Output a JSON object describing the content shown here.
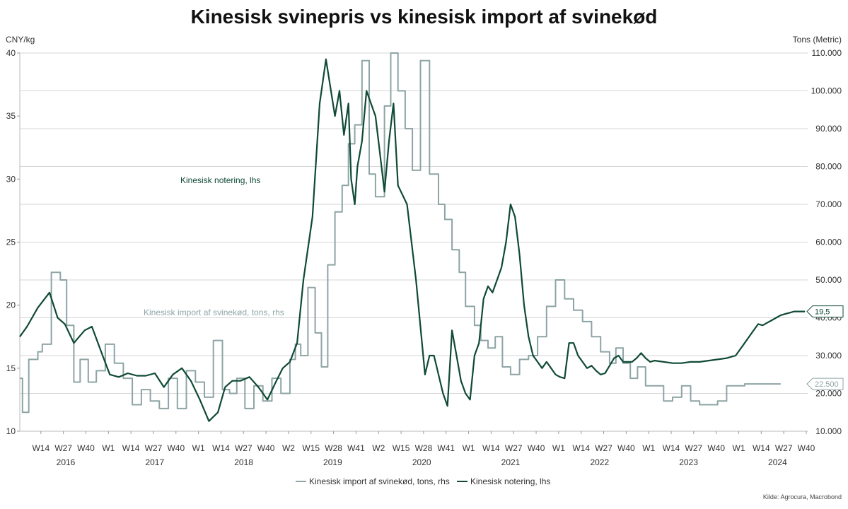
{
  "chart_data": {
    "type": "line",
    "title": "Kinesisk svinepris vs kinesisk import af svinekød",
    "y_left": {
      "label": "CNY/kg",
      "ticks": [
        "10",
        "15",
        "20",
        "25",
        "30",
        "35",
        "40"
      ],
      "range": [
        10,
        40
      ]
    },
    "y_right": {
      "label": "Tons (Metric)",
      "ticks": [
        "10.000",
        "20.000",
        "30.000",
        "40.000",
        "50.000",
        "60.000",
        "70.000",
        "80.000",
        "90.000",
        "100.000",
        "110.000"
      ],
      "range": [
        10000,
        110000
      ]
    },
    "x_ticks": [
      "W14",
      "W27",
      "W40",
      "W1",
      "W14",
      "W27",
      "W40",
      "W1",
      "W14",
      "W27",
      "W40",
      "W2",
      "W15",
      "W28",
      "W41",
      "W2",
      "W15",
      "W28",
      "W41",
      "W1",
      "W14",
      "W27",
      "W40",
      "W1",
      "W14",
      "W27",
      "W40",
      "W1",
      "W14",
      "W27",
      "W40",
      "W1",
      "W14",
      "W27",
      "W40"
    ],
    "x_years": [
      "2016",
      "2017",
      "2018",
      "2019",
      "2020",
      "2021",
      "2022",
      "2023",
      "2024"
    ],
    "grid": true,
    "legend_position": "bottom",
    "legend": [
      "Kinesisk import af svinekød, tons, rhs",
      "Kinesisk notering, lhs"
    ],
    "annotations": {
      "price_series": "Kinesisk notering, lhs",
      "import_series": "Kinesisk import af svinekød, tons, rhs"
    },
    "last_value_labels": {
      "price": "19,5",
      "import": "22.500"
    },
    "colors": {
      "price": "#0f4a35",
      "import": "#8ea4a5",
      "grid": "#d6d6d6"
    },
    "series": [
      {
        "name": "Kinesisk import af svinekød, tons, rhs",
        "axis": "right",
        "step": true,
        "x": [
          2016.0,
          2016.03,
          2016.1,
          2016.2,
          2016.25,
          2016.35,
          2016.45,
          2016.52,
          2016.6,
          2016.67,
          2016.76,
          2016.85,
          2016.95,
          2017.05,
          2017.15,
          2017.25,
          2017.35,
          2017.45,
          2017.55,
          2017.65,
          2017.75,
          2017.85,
          2017.95,
          2018.05,
          2018.15,
          2018.25,
          2018.33,
          2018.41,
          2018.5,
          2018.6,
          2018.7,
          2018.8,
          2018.9,
          2019.0,
          2019.06,
          2019.12,
          2019.2,
          2019.28,
          2019.35,
          2019.42,
          2019.5,
          2019.58,
          2019.65,
          2019.72,
          2019.8,
          2019.88,
          2019.95,
          2020.05,
          2020.12,
          2020.2,
          2020.28,
          2020.36,
          2020.45,
          2020.55,
          2020.65,
          2020.72,
          2020.8,
          2020.88,
          2020.95,
          2021.05,
          2021.12,
          2021.2,
          2021.28,
          2021.36,
          2021.45,
          2021.55,
          2021.65,
          2021.75,
          2021.85,
          2021.95,
          2022.05,
          2022.15,
          2022.25,
          2022.35,
          2022.45,
          2022.55,
          2022.62,
          2022.7,
          2022.78,
          2022.86,
          2022.95,
          2023.05,
          2023.15,
          2023.25,
          2023.35,
          2023.45,
          2023.55,
          2023.65,
          2023.75,
          2023.85,
          2023.95,
          2024.05,
          2024.15,
          2024.25,
          2024.35,
          2024.45
        ],
        "y": [
          24000,
          15000,
          29000,
          31000,
          33000,
          52000,
          50000,
          38000,
          23000,
          29000,
          23000,
          26000,
          33000,
          28000,
          24000,
          17000,
          21000,
          18000,
          16000,
          24000,
          16000,
          26000,
          23000,
          19000,
          34000,
          21000,
          20000,
          24000,
          16000,
          22000,
          18000,
          24000,
          20000,
          29000,
          33000,
          30000,
          48000,
          36000,
          27000,
          54000,
          68000,
          75000,
          86000,
          91000,
          108000,
          78000,
          72000,
          96000,
          110000,
          100000,
          90000,
          79000,
          108000,
          78000,
          70000,
          66000,
          58000,
          52000,
          43000,
          38000,
          34000,
          32000,
          35000,
          27000,
          25000,
          29000,
          30000,
          35000,
          43000,
          50000,
          45000,
          42000,
          39000,
          35000,
          31000,
          28000,
          32000,
          28000,
          24000,
          27000,
          22000,
          22000,
          18000,
          19000,
          22000,
          18000,
          17000,
          17000,
          18000,
          22000,
          22000,
          22500,
          22500,
          22500,
          22500,
          22500
        ]
      },
      {
        "name": "Kinesisk notering, lhs",
        "axis": "left",
        "step": false,
        "x": [
          2016.0,
          2016.08,
          2016.2,
          2016.33,
          2016.42,
          2016.5,
          2016.6,
          2016.72,
          2016.8,
          2016.92,
          2017.0,
          2017.1,
          2017.2,
          2017.3,
          2017.4,
          2017.5,
          2017.6,
          2017.7,
          2017.8,
          2017.9,
          2018.0,
          2018.1,
          2018.2,
          2018.28,
          2018.36,
          2018.45,
          2018.55,
          2018.65,
          2018.75,
          2018.85,
          2018.92,
          2019.0,
          2019.08,
          2019.15,
          2019.25,
          2019.33,
          2019.4,
          2019.5,
          2019.55,
          2019.6,
          2019.65,
          2019.68,
          2019.72,
          2019.75,
          2019.8,
          2019.85,
          2019.9,
          2019.95,
          2020.0,
          2020.05,
          2020.1,
          2020.15,
          2020.2,
          2020.3,
          2020.4,
          2020.5,
          2020.55,
          2020.6,
          2020.65,
          2020.7,
          2020.75,
          2020.8,
          2020.85,
          2020.9,
          2020.95,
          2021.0,
          2021.05,
          2021.1,
          2021.15,
          2021.2,
          2021.25,
          2021.3,
          2021.35,
          2021.4,
          2021.45,
          2021.5,
          2021.55,
          2021.6,
          2021.65,
          2021.7,
          2021.75,
          2021.8,
          2021.85,
          2021.9,
          2021.95,
          2022.0,
          2022.05,
          2022.1,
          2022.15,
          2022.2,
          2022.25,
          2022.3,
          2022.35,
          2022.4,
          2022.45,
          2022.5,
          2022.55,
          2022.6,
          2022.65,
          2022.7,
          2022.75,
          2022.8,
          2022.85,
          2022.9,
          2022.95,
          2023.0,
          2023.05,
          2023.15,
          2023.25,
          2023.35,
          2023.45,
          2023.55,
          2023.65,
          2023.75,
          2023.85,
          2023.95,
          2024.0,
          2024.05,
          2024.1,
          2024.15,
          2024.2,
          2024.25,
          2024.3,
          2024.35,
          2024.4,
          2024.45,
          2024.5,
          2024.55,
          2024.6,
          2024.66,
          2024.72
        ],
        "y": [
          17.5,
          18.3,
          19.8,
          21.0,
          19.0,
          18.5,
          17.0,
          18.0,
          18.3,
          16.0,
          14.5,
          14.3,
          14.6,
          14.4,
          14.4,
          14.6,
          13.5,
          14.5,
          15.0,
          14.0,
          12.5,
          10.8,
          11.5,
          13.5,
          14.0,
          14.0,
          14.3,
          13.5,
          12.5,
          14.0,
          15.0,
          15.5,
          17.0,
          22.0,
          27.0,
          36.0,
          39.5,
          35.0,
          37.0,
          33.5,
          36.0,
          30.0,
          28.0,
          31.0,
          33.0,
          37.0,
          36.0,
          35.0,
          32.0,
          29.0,
          33.0,
          36.0,
          29.5,
          28.0,
          22.0,
          14.5,
          16.0,
          16.0,
          14.5,
          13.0,
          12.0,
          18.0,
          16.0,
          14.0,
          13.0,
          12.5,
          16.0,
          17.0,
          20.5,
          21.5,
          21.0,
          22.0,
          23.0,
          25.0,
          28.0,
          27.0,
          24.0,
          20.0,
          17.5,
          16.0,
          15.5,
          15.0,
          15.5,
          15.0,
          14.5,
          14.3,
          14.2,
          17.0,
          17.0,
          16.0,
          15.5,
          15.0,
          15.2,
          14.8,
          14.5,
          14.6,
          15.2,
          15.8,
          16.0,
          15.5,
          15.5,
          15.5,
          15.8,
          16.2,
          15.8,
          15.5,
          15.6,
          15.5,
          15.4,
          15.4,
          15.5,
          15.5,
          15.6,
          15.7,
          15.8,
          16.0,
          16.5,
          17.0,
          17.5,
          18.0,
          18.5,
          18.4,
          18.6,
          18.8,
          19.0,
          19.2,
          19.3,
          19.4,
          19.5,
          19.5,
          19.5
        ]
      }
    ],
    "source": "Kilde: Agrocura, Macrobond"
  }
}
